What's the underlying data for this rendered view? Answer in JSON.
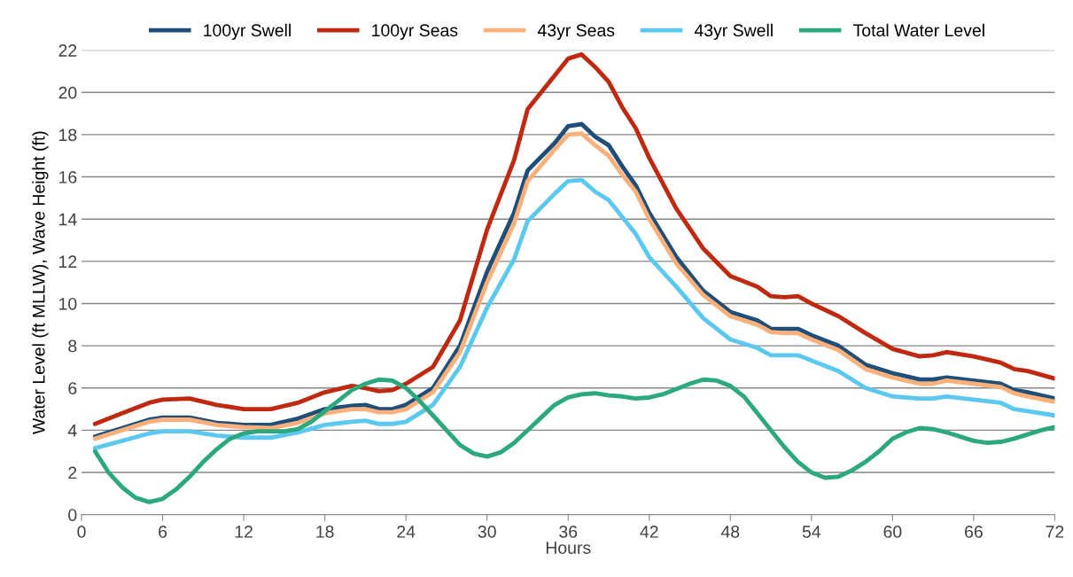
{
  "chart_data": {
    "type": "line",
    "xlabel": "Hours",
    "ylabel": "Water Level (ft MLLW), Wave Height (ft)",
    "xlim": [
      0,
      72
    ],
    "xticks": [
      0,
      6,
      12,
      18,
      24,
      30,
      36,
      42,
      48,
      54,
      60,
      66,
      72
    ],
    "ylim": [
      0,
      22
    ],
    "yticks": [
      0,
      2,
      4,
      6,
      8,
      10,
      12,
      14,
      16,
      18,
      20,
      22
    ],
    "grid": "y",
    "legend": "top",
    "marker": "none",
    "line_style": "solid",
    "series": [
      {
        "name": "100yr Swell",
        "color": "#1f4e79",
        "x": [
          1,
          3,
          5,
          6,
          8,
          10,
          12,
          14,
          16,
          18,
          20,
          21,
          22,
          23,
          24,
          26,
          28,
          30,
          32,
          33,
          35,
          36,
          37,
          38,
          39,
          40,
          41,
          42,
          44,
          46,
          48,
          50,
          51,
          52,
          53,
          54,
          56,
          58,
          60,
          62,
          63,
          64,
          66,
          68,
          69,
          70,
          72
        ],
        "values": [
          3.7,
          4.1,
          4.5,
          4.6,
          4.6,
          4.35,
          4.25,
          4.25,
          4.55,
          5.0,
          5.15,
          5.2,
          5.0,
          5.0,
          5.2,
          6.0,
          8.0,
          11.5,
          14.3,
          16.3,
          17.6,
          18.4,
          18.5,
          17.9,
          17.5,
          16.5,
          15.6,
          14.3,
          12.2,
          10.6,
          9.6,
          9.2,
          8.8,
          8.8,
          8.8,
          8.5,
          8.0,
          7.1,
          6.7,
          6.4,
          6.4,
          6.5,
          6.35,
          6.2,
          5.9,
          5.8,
          5.5
        ]
      },
      {
        "name": "100yr Seas",
        "color": "#c0290f",
        "x": [
          1,
          3,
          5,
          6,
          8,
          10,
          12,
          14,
          16,
          18,
          20,
          21,
          22,
          23,
          24,
          26,
          28,
          30,
          32,
          33,
          35,
          36,
          37,
          38,
          39,
          40,
          41,
          42,
          44,
          46,
          48,
          50,
          51,
          52,
          53,
          54,
          56,
          58,
          60,
          62,
          63,
          64,
          66,
          68,
          69,
          70,
          72
        ],
        "values": [
          4.3,
          4.8,
          5.3,
          5.45,
          5.5,
          5.2,
          5.0,
          5.0,
          5.3,
          5.8,
          6.1,
          6.0,
          5.85,
          5.9,
          6.2,
          7.0,
          9.2,
          13.5,
          16.8,
          19.2,
          20.8,
          21.6,
          21.8,
          21.2,
          20.5,
          19.3,
          18.3,
          16.9,
          14.5,
          12.6,
          11.3,
          10.8,
          10.35,
          10.3,
          10.35,
          10.0,
          9.4,
          8.6,
          7.85,
          7.5,
          7.55,
          7.7,
          7.5,
          7.2,
          6.9,
          6.8,
          6.45
        ]
      },
      {
        "name": "43yr Seas",
        "color": "#f9b07a",
        "x": [
          1,
          3,
          5,
          6,
          8,
          10,
          12,
          14,
          16,
          18,
          20,
          21,
          22,
          23,
          24,
          26,
          28,
          30,
          32,
          33,
          35,
          36,
          37,
          38,
          39,
          40,
          41,
          42,
          44,
          46,
          48,
          50,
          51,
          52,
          53,
          54,
          56,
          58,
          60,
          62,
          63,
          64,
          66,
          68,
          69,
          70,
          72
        ],
        "values": [
          3.6,
          4.0,
          4.4,
          4.5,
          4.5,
          4.25,
          4.15,
          4.1,
          4.35,
          4.8,
          5.0,
          5.0,
          4.85,
          4.85,
          5.0,
          5.8,
          7.7,
          11.0,
          13.8,
          15.8,
          17.3,
          18.0,
          18.05,
          17.5,
          17.0,
          16.1,
          15.3,
          14.0,
          11.9,
          10.4,
          9.4,
          9.0,
          8.65,
          8.6,
          8.6,
          8.3,
          7.8,
          6.9,
          6.5,
          6.2,
          6.2,
          6.35,
          6.2,
          6.05,
          5.75,
          5.6,
          5.35
        ]
      },
      {
        "name": "43yr Swell",
        "color": "#5bc8f0",
        "x": [
          1,
          3,
          5,
          6,
          8,
          10,
          12,
          14,
          16,
          18,
          20,
          21,
          22,
          23,
          24,
          26,
          28,
          30,
          32,
          33,
          35,
          36,
          37,
          38,
          39,
          40,
          41,
          42,
          44,
          46,
          48,
          50,
          51,
          52,
          53,
          54,
          56,
          58,
          60,
          62,
          63,
          64,
          66,
          68,
          69,
          70,
          72
        ],
        "values": [
          3.15,
          3.5,
          3.85,
          3.95,
          3.95,
          3.75,
          3.65,
          3.65,
          3.9,
          4.25,
          4.4,
          4.45,
          4.3,
          4.3,
          4.4,
          5.2,
          7.0,
          9.8,
          12.1,
          13.9,
          15.2,
          15.8,
          15.85,
          15.3,
          14.9,
          14.1,
          13.3,
          12.2,
          10.8,
          9.3,
          8.3,
          7.9,
          7.55,
          7.55,
          7.55,
          7.3,
          6.8,
          6.0,
          5.6,
          5.5,
          5.5,
          5.6,
          5.45,
          5.3,
          5.0,
          4.9,
          4.7
        ]
      },
      {
        "name": "Total Water Level",
        "color": "#2ca87f",
        "x": [
          1,
          2,
          3,
          4,
          5,
          6,
          7,
          8,
          9,
          10,
          11,
          12,
          13,
          14,
          15,
          16,
          17,
          18,
          19,
          20,
          21,
          22,
          23,
          24,
          25,
          26,
          27,
          28,
          29,
          30,
          31,
          32,
          33,
          34,
          35,
          36,
          37,
          38,
          39,
          40,
          41,
          42,
          43,
          44,
          45,
          46,
          47,
          48,
          49,
          50,
          51,
          52,
          53,
          54,
          55,
          56,
          57,
          58,
          59,
          60,
          61,
          62,
          63,
          64,
          65,
          66,
          67,
          68,
          69,
          70,
          71,
          72
        ],
        "values": [
          3.0,
          2.0,
          1.3,
          0.8,
          0.6,
          0.75,
          1.2,
          1.8,
          2.5,
          3.1,
          3.6,
          3.85,
          3.95,
          3.95,
          3.95,
          4.05,
          4.4,
          4.9,
          5.4,
          5.9,
          6.2,
          6.4,
          6.35,
          6.0,
          5.4,
          4.7,
          4.0,
          3.3,
          2.9,
          2.75,
          2.95,
          3.4,
          4.0,
          4.6,
          5.2,
          5.55,
          5.7,
          5.75,
          5.65,
          5.6,
          5.5,
          5.55,
          5.7,
          5.95,
          6.2,
          6.4,
          6.35,
          6.1,
          5.6,
          4.8,
          4.0,
          3.2,
          2.5,
          2.0,
          1.75,
          1.8,
          2.1,
          2.5,
          3.0,
          3.6,
          3.9,
          4.1,
          4.05,
          3.9,
          3.7,
          3.5,
          3.4,
          3.45,
          3.6,
          3.8,
          4.0,
          4.15
        ]
      }
    ]
  }
}
